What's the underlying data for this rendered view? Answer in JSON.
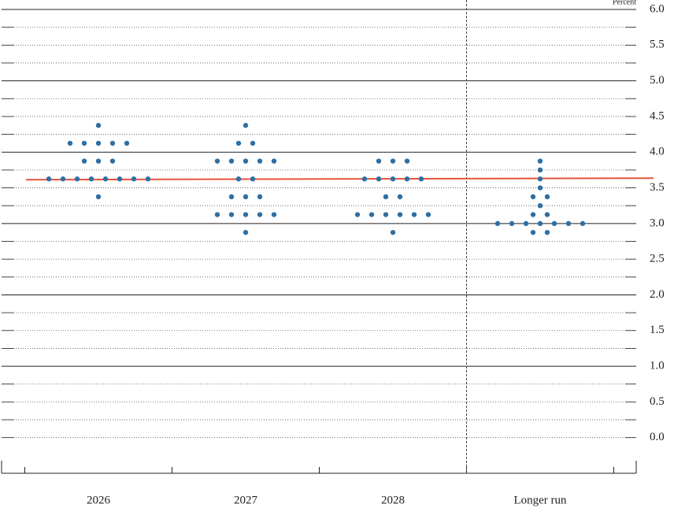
{
  "chart_data": {
    "type": "dot",
    "unit_label": "Percent",
    "categories": [
      "2026",
      "2027",
      "2028",
      "Longer run"
    ],
    "values": [
      [
        4.375,
        4.125,
        4.125,
        4.125,
        4.125,
        4.125,
        3.875,
        3.875,
        3.875,
        3.625,
        3.625,
        3.625,
        3.625,
        3.625,
        3.625,
        3.625,
        3.625,
        3.375
      ],
      [
        4.375,
        4.125,
        4.125,
        3.875,
        3.875,
        3.875,
        3.875,
        3.875,
        3.625,
        3.625,
        3.375,
        3.375,
        3.375,
        3.125,
        3.125,
        3.125,
        3.125,
        3.125,
        2.875
      ],
      [
        3.875,
        3.875,
        3.875,
        3.625,
        3.625,
        3.625,
        3.625,
        3.625,
        3.375,
        3.375,
        3.125,
        3.125,
        3.125,
        3.125,
        3.125,
        3.125,
        2.875
      ],
      [
        3.875,
        3.75,
        3.625,
        3.5,
        3.375,
        3.375,
        3.25,
        3.125,
        3.125,
        3.0,
        3.0,
        3.0,
        3.0,
        3.0,
        3.0,
        3.0,
        2.875,
        2.875
      ]
    ],
    "color": "#2f6fa3",
    "reference_line": 3.625,
    "reference_color": "#e8533a",
    "ylim": [
      -0.5,
      6.0
    ],
    "yticks": [
      {
        "value": 0,
        "label": "0.0"
      },
      {
        "value": 0.5,
        "label": "0.5"
      },
      {
        "value": 1,
        "label": "1.0"
      },
      {
        "value": 1.5,
        "label": "1.5"
      },
      {
        "value": 2,
        "label": "2.0"
      },
      {
        "value": 2.5,
        "label": "2.5"
      },
      {
        "value": 3,
        "label": "3.0"
      },
      {
        "value": 3.5,
        "label": "3.5"
      },
      {
        "value": 4,
        "label": "4.0"
      },
      {
        "value": 4.5,
        "label": "4.5"
      },
      {
        "value": 5,
        "label": "5.0"
      },
      {
        "value": 5.5,
        "label": "5.5"
      },
      {
        "value": 6,
        "label": "6.0"
      }
    ],
    "grid_lines": [
      0,
      0.25,
      0.5,
      0.75,
      1,
      1.25,
      1.5,
      1.75,
      2,
      2.25,
      2.5,
      2.75,
      3,
      3.25,
      3.5,
      3.75,
      4,
      4.25,
      4.5,
      4.75,
      5,
      5.25,
      5.5,
      5.75,
      6
    ]
  }
}
